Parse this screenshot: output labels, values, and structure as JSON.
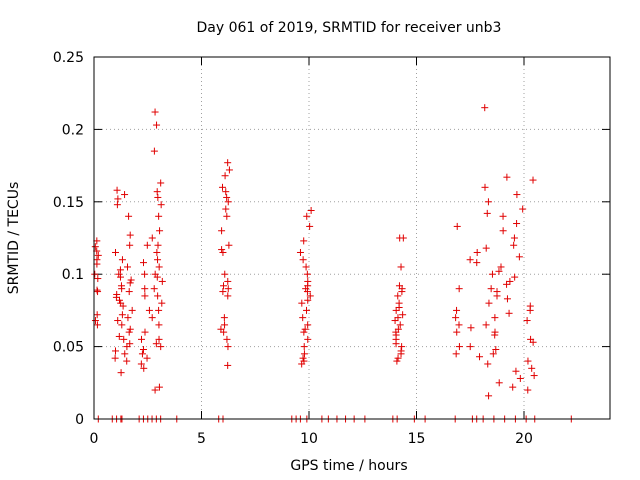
{
  "chart_data": {
    "type": "scatter",
    "title": "Day 061 of 2019, SRMTID for receiver unb3",
    "xlabel": "GPS time / hours",
    "ylabel": "SRMTID / TECUs",
    "xlim": [
      0,
      24
    ],
    "ylim": [
      0,
      0.25
    ],
    "x_ticks": [
      0,
      5,
      10,
      15,
      20
    ],
    "y_ticks": [
      0,
      0.05,
      0.1,
      0.15,
      0.2,
      0.25
    ],
    "y_tick_labels": [
      "0",
      "0.05",
      "0.1",
      "0.15",
      "0.2",
      "0.25"
    ],
    "grid": true,
    "marker": "+",
    "color": "#e00000",
    "clusters": [
      {
        "x_range": [
          0.0,
          0.2
        ],
        "y_values": [
          0.123,
          0.119,
          0.116,
          0.113,
          0.11,
          0.107,
          0.1,
          0.097,
          0.089,
          0.088,
          0.072,
          0.068,
          0.065
        ]
      },
      {
        "x_range": [
          0.9,
          1.8
        ],
        "y_values": [
          0.158,
          0.155,
          0.152,
          0.148,
          0.14,
          0.127,
          0.12,
          0.115,
          0.11,
          0.105,
          0.103,
          0.1,
          0.098,
          0.096,
          0.094,
          0.092,
          0.09,
          0.088,
          0.086,
          0.084,
          0.082,
          0.08,
          0.078,
          0.075,
          0.072,
          0.07,
          0.068,
          0.065,
          0.062,
          0.06,
          0.057,
          0.055,
          0.052,
          0.05,
          0.047,
          0.045,
          0.042,
          0.04,
          0.032
        ]
      },
      {
        "x_range": [
          2.2,
          2.6
        ],
        "y_values": [
          0.12,
          0.108,
          0.1,
          0.09,
          0.085,
          0.075,
          0.06,
          0.055,
          0.048,
          0.045,
          0.042,
          0.038,
          0.035
        ]
      },
      {
        "x_range": [
          2.7,
          3.2
        ],
        "y_values": [
          0.212,
          0.203,
          0.185,
          0.163,
          0.157,
          0.153,
          0.148,
          0.14,
          0.13,
          0.125,
          0.12,
          0.115,
          0.11,
          0.105,
          0.1,
          0.098,
          0.095,
          0.09,
          0.085,
          0.08,
          0.075,
          0.07,
          0.065,
          0.055,
          0.052,
          0.05,
          0.022,
          0.02
        ]
      },
      {
        "x_range": [
          5.9,
          6.3
        ],
        "y_values": [
          0.177,
          0.172,
          0.168,
          0.16,
          0.157,
          0.153,
          0.15,
          0.145,
          0.14,
          0.13,
          0.12,
          0.117,
          0.115,
          0.1,
          0.095,
          0.092,
          0.09,
          0.088,
          0.085,
          0.07,
          0.065,
          0.062,
          0.06,
          0.055,
          0.05,
          0.037
        ]
      },
      {
        "x_range": [
          9.6,
          10.1
        ],
        "y_values": [
          0.144,
          0.14,
          0.133,
          0.123,
          0.115,
          0.11,
          0.105,
          0.1,
          0.095,
          0.092,
          0.09,
          0.088,
          0.085,
          0.082,
          0.08,
          0.075,
          0.07,
          0.065,
          0.062,
          0.06,
          0.055,
          0.05,
          0.045,
          0.042,
          0.04,
          0.038
        ]
      },
      {
        "x_range": [
          14.0,
          14.4
        ],
        "y_values": [
          0.125,
          0.125,
          0.105,
          0.092,
          0.09,
          0.088,
          0.085,
          0.08,
          0.077,
          0.075,
          0.072,
          0.07,
          0.068,
          0.065,
          0.062,
          0.06,
          0.058,
          0.055,
          0.052,
          0.05,
          0.047,
          0.045,
          0.042,
          0.04
        ]
      },
      {
        "x_range": [
          16.8,
          17.0
        ],
        "y_values": [
          0.133,
          0.09,
          0.075,
          0.07,
          0.065,
          0.06,
          0.05,
          0.045
        ]
      },
      {
        "x_range": [
          17.4,
          20.5
        ],
        "y_values": [
          0.215,
          0.167,
          0.165,
          0.16,
          0.155,
          0.15,
          0.145,
          0.142,
          0.14,
          0.135,
          0.13,
          0.125,
          0.12,
          0.118,
          0.115,
          0.112,
          0.11,
          0.108,
          0.105,
          0.102,
          0.1,
          0.098,
          0.095,
          0.093,
          0.09,
          0.088,
          0.085,
          0.083,
          0.08,
          0.078,
          0.075,
          0.073,
          0.07,
          0.068,
          0.065,
          0.063,
          0.06,
          0.058,
          0.055,
          0.053,
          0.05,
          0.048,
          0.045,
          0.043,
          0.04,
          0.038,
          0.035,
          0.033,
          0.03,
          0.028,
          0.025,
          0.022,
          0.02,
          0.016
        ]
      }
    ],
    "baseline_points": [
      0.2,
      0.85,
      1.05,
      1.25,
      1.3,
      2.1,
      2.3,
      2.5,
      2.7,
      2.9,
      3.1,
      3.85,
      5.8,
      6.0,
      9.2,
      9.4,
      9.6,
      9.9,
      10.6,
      10.9,
      11.3,
      11.7,
      12.1,
      12.6,
      13.9,
      14.1,
      14.9,
      15.4,
      16.8,
      17.6,
      17.8,
      18.1,
      18.6,
      19.1,
      19.6,
      20.1,
      20.5,
      22.2
    ]
  }
}
